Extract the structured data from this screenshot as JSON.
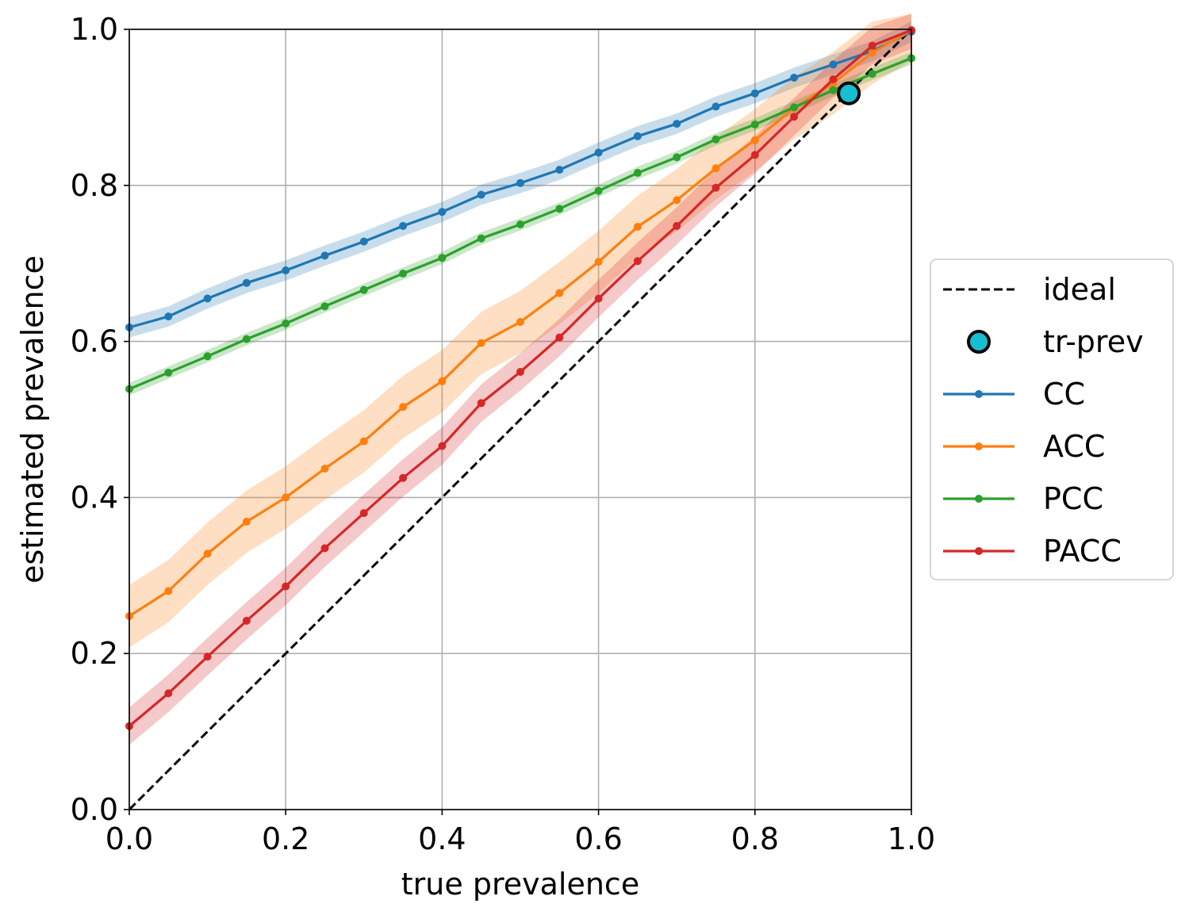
{
  "chart_data": {
    "type": "line",
    "title": "",
    "xlabel": "true prevalence",
    "ylabel": "estimated prevalence",
    "xlim": [
      0,
      1
    ],
    "ylim": [
      0,
      1
    ],
    "grid": true,
    "legend_position": "right-outside",
    "xticks": [
      "0.0",
      "0.2",
      "0.4",
      "0.6",
      "0.8",
      "1.0"
    ],
    "yticks": [
      "0.0",
      "0.2",
      "0.4",
      "0.6",
      "0.8",
      "1.0"
    ],
    "x": [
      0.0,
      0.05,
      0.1,
      0.15,
      0.2,
      0.25,
      0.3,
      0.35,
      0.4,
      0.45,
      0.5,
      0.55,
      0.6,
      0.65,
      0.7,
      0.75,
      0.8,
      0.85,
      0.9,
      0.95,
      1.0
    ],
    "ideal": {
      "name": "ideal",
      "color": "#000000",
      "style": "dashed",
      "x": [
        0,
        1
      ],
      "y": [
        0,
        1
      ]
    },
    "marker": {
      "name": "tr-prev",
      "color": "#17becf",
      "x": 0.92,
      "y": 0.918
    },
    "series": [
      {
        "name": "CC",
        "color": "#1f77b4",
        "band": 0.013,
        "values": [
          0.618,
          0.632,
          0.655,
          0.675,
          0.691,
          0.71,
          0.728,
          0.748,
          0.766,
          0.788,
          0.803,
          0.82,
          0.842,
          0.863,
          0.879,
          0.901,
          0.918,
          0.938,
          0.955,
          0.972,
          0.997
        ]
      },
      {
        "name": "ACC",
        "color": "#ff7f0e",
        "band": 0.04,
        "values": [
          0.248,
          0.28,
          0.328,
          0.369,
          0.4,
          0.437,
          0.472,
          0.516,
          0.549,
          0.598,
          0.625,
          0.662,
          0.702,
          0.747,
          0.781,
          0.822,
          0.858,
          0.899,
          0.931,
          0.97,
          0.999
        ]
      },
      {
        "name": "PCC",
        "color": "#2ca02c",
        "band": 0.008,
        "values": [
          0.539,
          0.56,
          0.581,
          0.603,
          0.623,
          0.645,
          0.666,
          0.687,
          0.707,
          0.732,
          0.75,
          0.77,
          0.793,
          0.816,
          0.836,
          0.859,
          0.878,
          0.9,
          0.922,
          0.943,
          0.963
        ]
      },
      {
        "name": "PACC",
        "color": "#d62728",
        "band": 0.024,
        "values": [
          0.107,
          0.149,
          0.196,
          0.242,
          0.286,
          0.335,
          0.38,
          0.425,
          0.466,
          0.521,
          0.561,
          0.605,
          0.655,
          0.703,
          0.748,
          0.797,
          0.839,
          0.888,
          0.936,
          0.979,
          0.999
        ]
      }
    ]
  }
}
